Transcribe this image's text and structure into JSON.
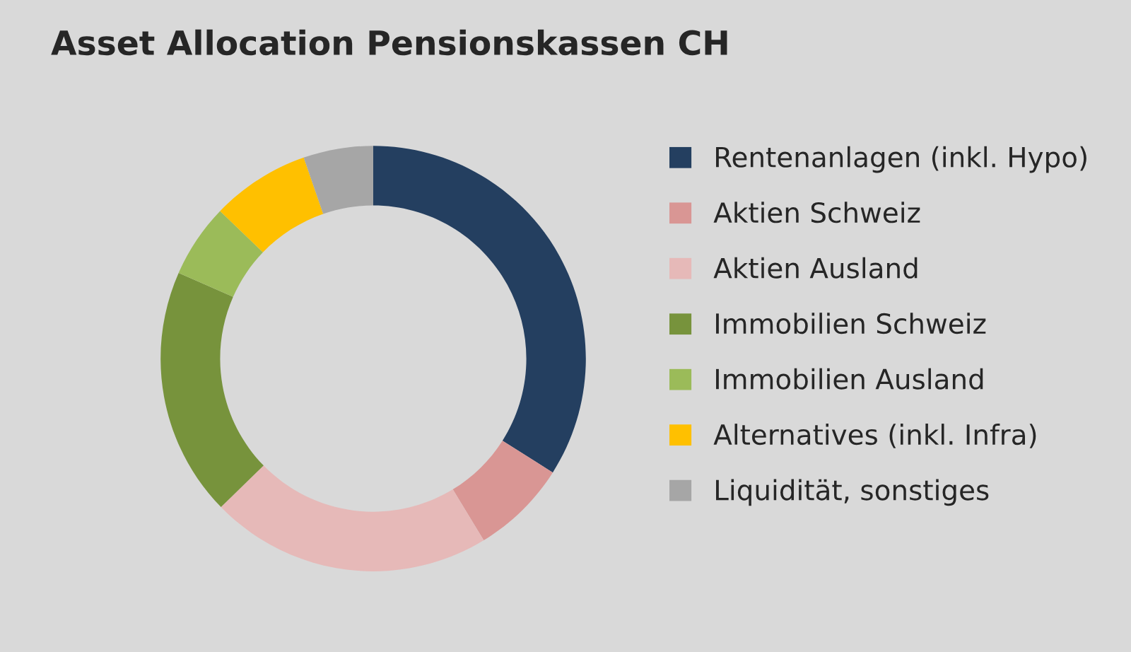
{
  "chart_data": {
    "type": "donut",
    "title": "Asset Allocation Pensionskassen CH",
    "categories": [
      "Rentenanlagen (inkl. Hypo)",
      "Aktien Schweiz",
      "Aktien Ausland",
      "Immobilien Schweiz",
      "Immobilien Ausland",
      "Alternatives (inkl. Infra)",
      "Liquidität, sonstiges"
    ],
    "values": [
      34,
      7.3,
      21.4,
      18.9,
      5.6,
      7.5,
      5.3
    ],
    "colors": [
      "#243f60",
      "#d99694",
      "#e6b9b8",
      "#77933c",
      "#9bbb59",
      "#ffc000",
      "#a6a6a6"
    ],
    "legend": "right"
  }
}
